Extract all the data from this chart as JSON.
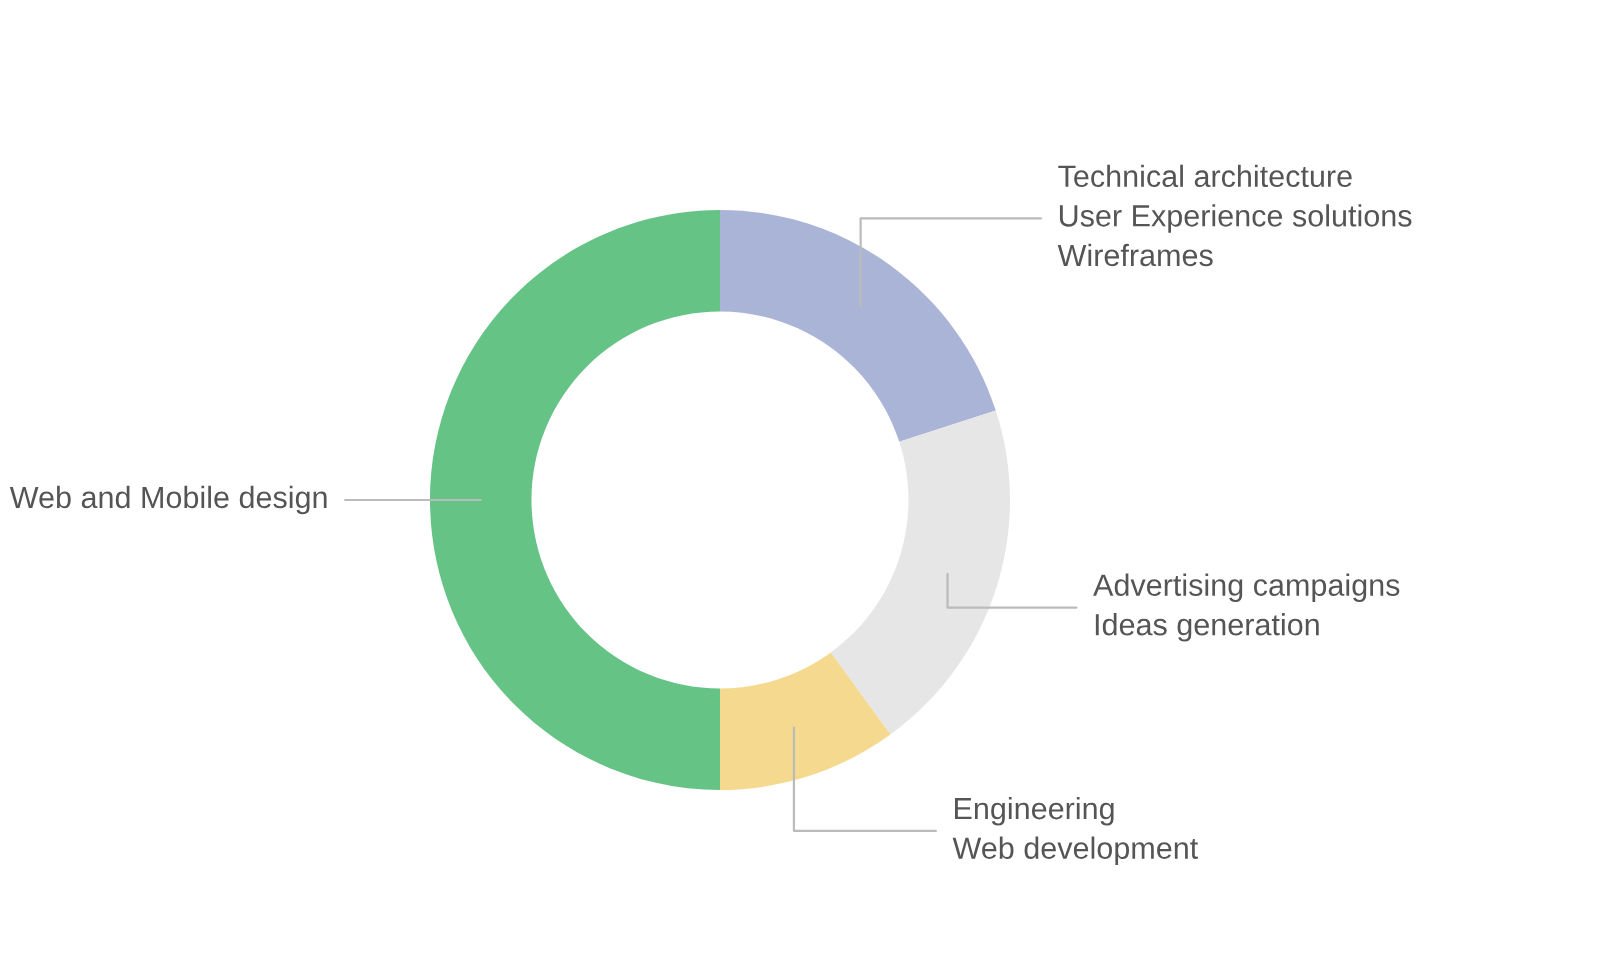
{
  "chart_data": {
    "type": "donut",
    "categories": [
      "Technical architecture\nUser Experience solutions\nWireframes",
      "Advertising campaigns\nIdeas generation",
      "Engineering\nWeb development",
      "Web and Mobile design"
    ],
    "values": [
      20,
      20,
      10,
      50
    ],
    "colors": [
      "#aab4d6",
      "#e6e6e6",
      "#f5d98f",
      "#65c386"
    ],
    "legend": false
  }
}
